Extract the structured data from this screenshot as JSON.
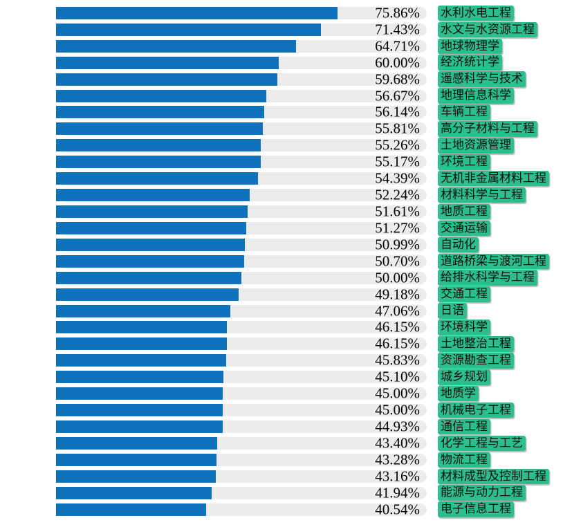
{
  "chart_data": {
    "type": "bar",
    "orientation": "horizontal",
    "title": "",
    "xlabel": "",
    "ylabel": "",
    "xlim": [
      0,
      100
    ],
    "grid": false,
    "legend": false,
    "categories": [
      "水利水电工程",
      "水文与水资源工程",
      "地球物理学",
      "经济统计学",
      "遥感科学与技术",
      "地理信息科学",
      "车辆工程",
      "高分子材料与工程",
      "土地资源管理",
      "环境工程",
      "无机非金属材料工程",
      "材料科学与工程",
      "地质工程",
      "交通运输",
      "自动化",
      "道路桥梁与渡河工程",
      "给排水科学与工程",
      "交通工程",
      "日语",
      "环境科学",
      "土地整治工程",
      "资源勘查工程",
      "城乡规划",
      "地质学",
      "机械电子工程",
      "通信工程",
      "化学工程与工艺",
      "物流工程",
      "材料成型及控制工程",
      "能源与动力工程",
      "电子信息工程"
    ],
    "values": [
      75.86,
      71.43,
      64.71,
      60.0,
      59.68,
      56.67,
      56.14,
      55.81,
      55.26,
      55.17,
      54.39,
      52.24,
      51.61,
      51.27,
      50.99,
      50.7,
      50.0,
      49.18,
      47.06,
      46.15,
      46.15,
      45.83,
      45.1,
      45.0,
      45.0,
      44.93,
      43.4,
      43.28,
      43.16,
      41.94,
      40.54
    ],
    "value_labels": [
      "75.86%",
      "71.43%",
      "64.71%",
      "60.00%",
      "59.68%",
      "56.67%",
      "56.14%",
      "55.81%",
      "55.26%",
      "55.17%",
      "54.39%",
      "52.24%",
      "51.61%",
      "51.27%",
      "50.99%",
      "50.70%",
      "50.00%",
      "49.18%",
      "47.06%",
      "46.15%",
      "46.15%",
      "45.83%",
      "45.10%",
      "45.00%",
      "45.00%",
      "44.93%",
      "43.40%",
      "43.28%",
      "43.16%",
      "41.94%",
      "40.54%"
    ],
    "colors": {
      "bar": "#1072bc",
      "track": "#ececec",
      "label_highlight": "#2cbe8c",
      "value_text": "#000000",
      "background": "#ffffff"
    }
  }
}
